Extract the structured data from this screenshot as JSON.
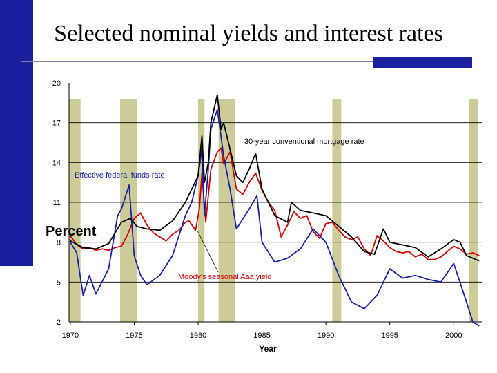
{
  "slide": {
    "title": "Selected nominal yields and interest rates"
  },
  "colors": {
    "accent": "#1a1f9e",
    "recession": "#cccc99",
    "mortgage": "#000000",
    "fed_funds": "#1a1fa8",
    "aaa": "#d00000"
  },
  "chart_data": {
    "type": "line",
    "title": "",
    "xlabel": "Year",
    "ylabel": "Percent",
    "xlim": [
      1969.9,
      2002.2
    ],
    "ylim": [
      2,
      20
    ],
    "x_ticks": [
      "1970",
      "1975",
      "1980",
      "1985",
      "1990",
      "1995",
      "2000"
    ],
    "y_ticks": [
      "2",
      "5",
      "8",
      "11",
      "14",
      "17",
      "20"
    ],
    "grid": "horizontal",
    "recessions": [
      [
        1969.9,
        1970.8
      ],
      [
        1973.9,
        1975.2
      ],
      [
        1980.0,
        1980.5
      ],
      [
        1981.6,
        1982.9
      ],
      [
        1990.5,
        1991.2
      ],
      [
        2001.2,
        2001.9
      ]
    ],
    "annotations": [
      {
        "text": "30-year conventional mortgage rate",
        "series": "mortgage",
        "color": "#000000"
      },
      {
        "text": "Effective federal funds rate",
        "series": "fed_funds",
        "color": "#1a1fa8"
      },
      {
        "text": "Moody's seasonal Aaa yield",
        "series": "aaa",
        "color": "#d00000"
      }
    ],
    "series": [
      {
        "key": "mortgage",
        "color": "#000000",
        "x": [
          1970.0,
          1971.0,
          1972.0,
          1973.0,
          1974.0,
          1974.7,
          1975.2,
          1976.0,
          1977.0,
          1978.0,
          1979.0,
          1980.0,
          1980.3,
          1980.5,
          1980.8,
          1981.0,
          1981.5,
          1981.8,
          1982.0,
          1982.5,
          1983.0,
          1983.5,
          1984.0,
          1984.5,
          1985.0,
          1986.0,
          1987.0,
          1987.3,
          1988.0,
          1989.0,
          1990.0,
          1991.0,
          1992.0,
          1993.0,
          1993.8,
          1994.5,
          1995.0,
          1996.0,
          1997.0,
          1998.0,
          1999.0,
          2000.0,
          2000.5,
          2001.0,
          2002.0
        ],
        "y": [
          8.1,
          7.6,
          7.5,
          7.9,
          9.5,
          9.8,
          9.2,
          9.0,
          8.9,
          9.6,
          11.0,
          13.0,
          16.0,
          12.5,
          14.0,
          17.0,
          19.1,
          16.5,
          17.0,
          15.0,
          13.0,
          12.5,
          13.5,
          14.7,
          12.0,
          10.0,
          9.5,
          11.0,
          10.4,
          10.2,
          10.0,
          9.2,
          8.4,
          7.3,
          7.1,
          9.0,
          8.0,
          7.8,
          7.6,
          6.9,
          7.5,
          8.2,
          8.0,
          7.0,
          6.6
        ]
      },
      {
        "key": "fed_funds",
        "color": "#1a1fa8",
        "x": [
          1970.0,
          1970.5,
          1971.0,
          1971.5,
          1972.0,
          1973.0,
          1973.7,
          1974.0,
          1974.6,
          1975.0,
          1975.5,
          1976.0,
          1977.0,
          1978.0,
          1979.0,
          1979.5,
          1980.0,
          1980.3,
          1980.5,
          1980.8,
          1981.0,
          1981.5,
          1982.0,
          1982.5,
          1983.0,
          1984.0,
          1984.6,
          1985.0,
          1986.0,
          1987.0,
          1988.0,
          1989.0,
          1990.0,
          1991.0,
          1992.0,
          1993.0,
          1994.0,
          1995.0,
          1996.0,
          1997.0,
          1998.0,
          1999.0,
          2000.0,
          2001.0,
          2001.5,
          2002.0
        ],
        "y": [
          8.0,
          7.2,
          4.0,
          5.5,
          4.1,
          6.0,
          10.0,
          10.5,
          12.3,
          7.0,
          5.5,
          4.8,
          5.5,
          7.0,
          10.0,
          11.0,
          13.0,
          15.0,
          10.0,
          13.5,
          16.5,
          18.0,
          14.5,
          12.0,
          9.0,
          10.5,
          11.5,
          8.0,
          6.5,
          6.8,
          7.5,
          9.0,
          8.0,
          5.5,
          3.5,
          3.0,
          4.0,
          6.0,
          5.3,
          5.5,
          5.2,
          5.0,
          6.4,
          3.5,
          2.0,
          1.7
        ]
      },
      {
        "key": "aaa",
        "color": "#d00000",
        "x": [
          1970.0,
          1970.5,
          1971.0,
          1971.5,
          1972.0,
          1972.5,
          1973.0,
          1973.5,
          1974.0,
          1974.5,
          1975.0,
          1975.5,
          1976.0,
          1976.5,
          1977.0,
          1977.5,
          1978.0,
          1978.5,
          1979.0,
          1979.3,
          1979.8,
          1980.1,
          1980.3,
          1980.6,
          1981.0,
          1981.5,
          1981.8,
          1982.0,
          1982.5,
          1983.0,
          1983.5,
          1984.0,
          1984.5,
          1985.0,
          1985.5,
          1986.0,
          1986.5,
          1987.0,
          1987.5,
          1988.0,
          1988.5,
          1989.0,
          1989.5,
          1990.0,
          1990.5,
          1991.0,
          1991.5,
          1992.0,
          1992.5,
          1993.0,
          1993.5,
          1994.0,
          1994.5,
          1995.0,
          1995.5,
          1996.0,
          1996.5,
          1997.0,
          1997.5,
          1998.0,
          1998.5,
          1999.0,
          1999.5,
          2000.0,
          2000.5,
          2001.0,
          2001.5,
          2002.0
        ],
        "y": [
          8.5,
          7.8,
          7.5,
          7.6,
          7.4,
          7.5,
          7.4,
          7.6,
          7.7,
          8.6,
          9.8,
          10.2,
          9.3,
          8.7,
          8.4,
          8.1,
          8.6,
          8.9,
          9.5,
          9.6,
          8.9,
          10.5,
          13.2,
          9.5,
          13.5,
          14.8,
          15.1,
          13.9,
          14.8,
          12.0,
          11.6,
          12.5,
          13.2,
          11.9,
          11.0,
          10.4,
          8.4,
          9.3,
          10.3,
          9.8,
          10.0,
          8.8,
          8.3,
          9.4,
          9.5,
          8.9,
          8.4,
          8.2,
          8.4,
          7.5,
          7.0,
          8.5,
          8.1,
          7.6,
          7.3,
          7.2,
          7.3,
          6.9,
          7.1,
          6.7,
          6.7,
          6.9,
          7.3,
          7.7,
          7.5,
          7.1,
          7.2,
          7.0
        ]
      }
    ]
  }
}
